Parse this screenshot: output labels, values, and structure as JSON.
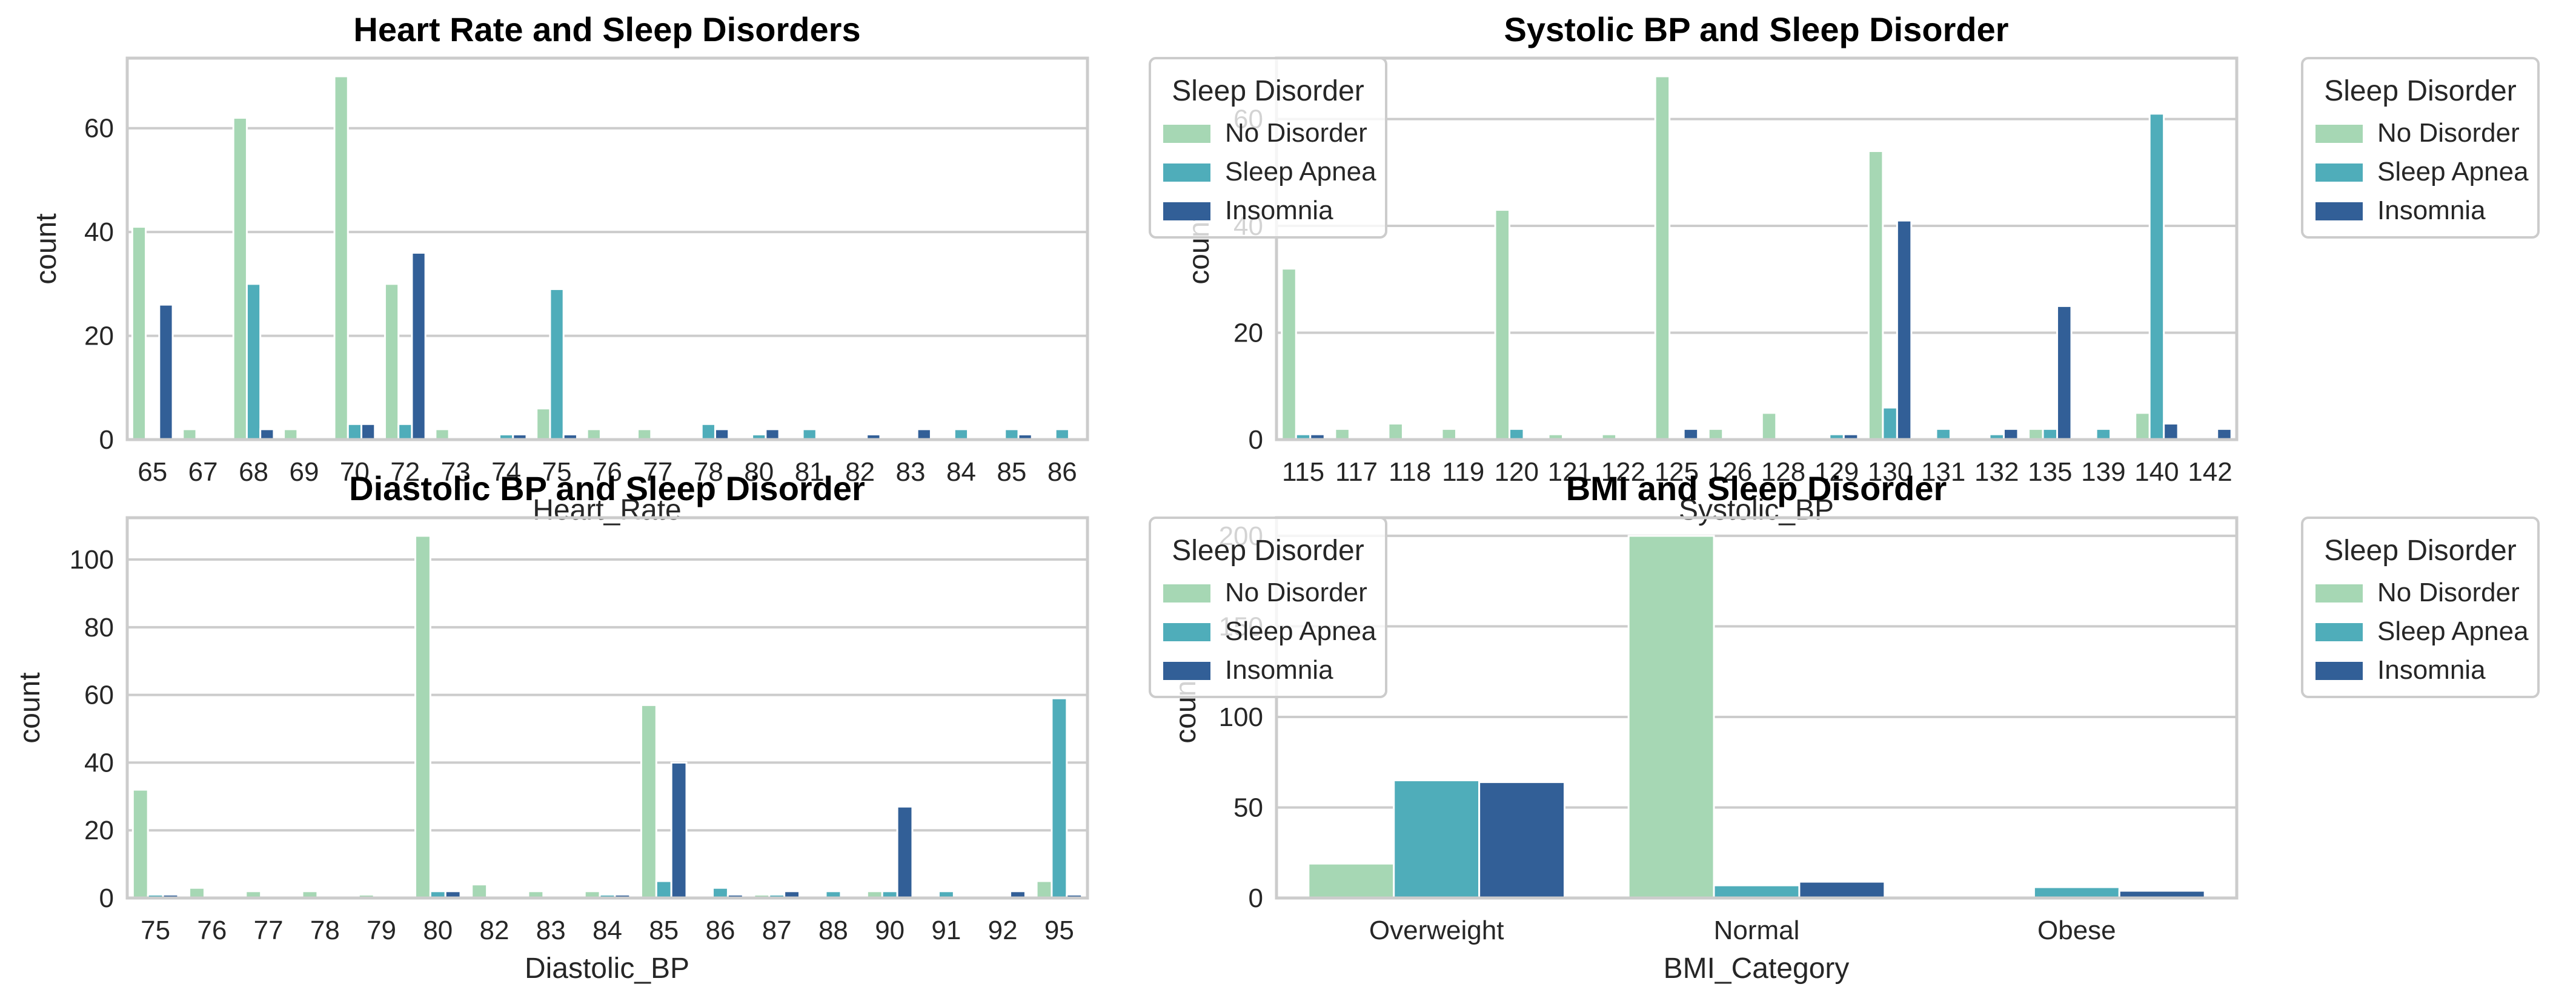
{
  "colors": {
    "no_disorder": "#a6d7b4",
    "sleep_apnea": "#4fadba",
    "insomnia": "#325f97",
    "grid": "#cccccc",
    "frame": "#cccccc",
    "legend_border": "#cccccc"
  },
  "chart_data": [
    {
      "type": "bar",
      "title": "Heart Rate and Sleep Disorders",
      "xlabel": "Heart_Rate",
      "ylabel": "count",
      "ylim": [
        0,
        73.5
      ],
      "yticks": [
        0,
        20,
        40,
        60
      ],
      "grid": true,
      "legend_placement": "upper-right-outside",
      "legend": {
        "title": "Sleep Disorder",
        "entries": [
          "No Disorder",
          "Sleep Apnea",
          "Insomnia"
        ]
      },
      "categories": [
        "65",
        "67",
        "68",
        "69",
        "70",
        "72",
        "73",
        "74",
        "75",
        "76",
        "77",
        "78",
        "80",
        "81",
        "82",
        "83",
        "84",
        "85",
        "86"
      ],
      "series": [
        {
          "name": "No Disorder",
          "color_key": "no_disorder",
          "values": [
            41,
            2,
            62,
            2,
            70,
            30,
            2,
            0,
            6,
            2,
            2,
            0,
            0,
            0,
            0,
            0,
            0,
            0,
            0
          ]
        },
        {
          "name": "Sleep Apnea",
          "color_key": "sleep_apnea",
          "values": [
            0,
            0,
            30,
            0,
            3,
            3,
            0,
            1,
            29,
            0,
            0,
            3,
            1,
            2,
            0,
            0,
            2,
            2,
            2
          ]
        },
        {
          "name": "Insomnia",
          "color_key": "insomnia",
          "values": [
            26,
            0,
            2,
            0,
            3,
            36,
            0,
            1,
            1,
            0,
            0,
            2,
            2,
            0,
            1,
            2,
            0,
            1,
            0
          ]
        }
      ]
    },
    {
      "type": "bar",
      "title": "Systolic BP and Sleep Disorder",
      "xlabel": "Systolic_BP",
      "ylabel": "count",
      "ylim": [
        0,
        71.4
      ],
      "yticks": [
        0,
        20,
        40,
        60
      ],
      "grid": true,
      "legend_placement": "upper-right-outside",
      "legend": {
        "title": "Sleep Disorder",
        "entries": [
          "No Disorder",
          "Sleep Apnea",
          "Insomnia"
        ]
      },
      "categories": [
        "115",
        "117",
        "118",
        "119",
        "120",
        "121",
        "122",
        "125",
        "126",
        "128",
        "129",
        "130",
        "131",
        "132",
        "135",
        "139",
        "140",
        "142"
      ],
      "series": [
        {
          "name": "No Disorder",
          "color_key": "no_disorder",
          "values": [
            32,
            2,
            3,
            2,
            43,
            1,
            1,
            68,
            2,
            5,
            0,
            54,
            0,
            0,
            2,
            0,
            5,
            0
          ]
        },
        {
          "name": "Sleep Apnea",
          "color_key": "sleep_apnea",
          "values": [
            1,
            0,
            0,
            0,
            2,
            0,
            0,
            0,
            0,
            0,
            1,
            6,
            2,
            1,
            2,
            2,
            61,
            0
          ]
        },
        {
          "name": "Insomnia",
          "color_key": "insomnia",
          "values": [
            1,
            0,
            0,
            0,
            0,
            0,
            0,
            2,
            0,
            0,
            1,
            41,
            0,
            2,
            25,
            0,
            3,
            2
          ]
        }
      ]
    },
    {
      "type": "bar",
      "title": "Diastolic BP and Sleep Disorder",
      "xlabel": "Diastolic_BP",
      "ylabel": "count",
      "ylim": [
        0,
        112.35
      ],
      "yticks": [
        0,
        20,
        40,
        60,
        80,
        100
      ],
      "grid": true,
      "legend_placement": "upper-right-outside",
      "legend": {
        "title": "Sleep Disorder",
        "entries": [
          "No Disorder",
          "Sleep Apnea",
          "Insomnia"
        ]
      },
      "categories": [
        "75",
        "76",
        "77",
        "78",
        "79",
        "80",
        "82",
        "83",
        "84",
        "85",
        "86",
        "87",
        "88",
        "90",
        "91",
        "92",
        "95"
      ],
      "series": [
        {
          "name": "No Disorder",
          "color_key": "no_disorder",
          "values": [
            32,
            3,
            2,
            2,
            1,
            107,
            4,
            2,
            2,
            57,
            0,
            1,
            0,
            2,
            0,
            0,
            5
          ]
        },
        {
          "name": "Sleep Apnea",
          "color_key": "sleep_apnea",
          "values": [
            1,
            0,
            0,
            0,
            0,
            2,
            0,
            0,
            1,
            5,
            3,
            1,
            2,
            2,
            2,
            0,
            59
          ]
        },
        {
          "name": "Insomnia",
          "color_key": "insomnia",
          "values": [
            1,
            0,
            0,
            0,
            0,
            2,
            0,
            0,
            1,
            40,
            1,
            2,
            0,
            27,
            0,
            2,
            1
          ]
        }
      ]
    },
    {
      "type": "bar",
      "title": "BMI and Sleep Disorder",
      "xlabel": "BMI_Category",
      "ylabel": "count",
      "ylim": [
        0,
        210
      ],
      "yticks": [
        0,
        50,
        100,
        150,
        200
      ],
      "grid": true,
      "legend_placement": "upper-right-outside",
      "legend": {
        "title": "Sleep Disorder",
        "entries": [
          "No Disorder",
          "Sleep Apnea",
          "Insomnia"
        ]
      },
      "categories": [
        "Overweight",
        "Normal",
        "Obese"
      ],
      "series": [
        {
          "name": "No Disorder",
          "color_key": "no_disorder",
          "values": [
            19,
            200,
            0
          ]
        },
        {
          "name": "Sleep Apnea",
          "color_key": "sleep_apnea",
          "values": [
            65,
            7,
            6
          ]
        },
        {
          "name": "Insomnia",
          "color_key": "insomnia",
          "values": [
            64,
            9,
            4
          ]
        }
      ]
    }
  ]
}
